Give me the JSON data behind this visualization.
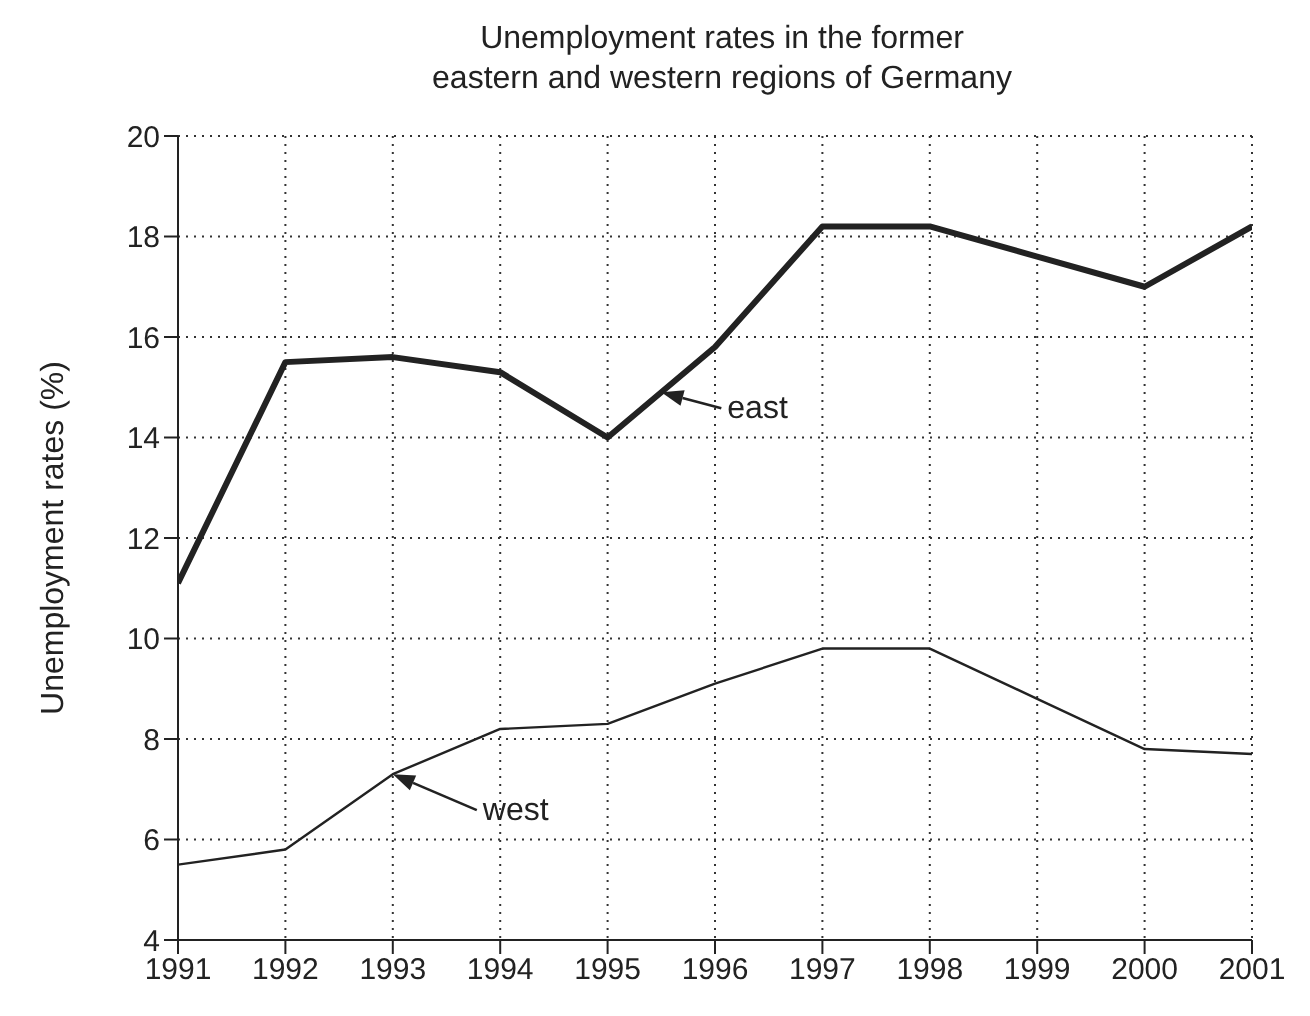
{
  "chart_data": {
    "type": "line",
    "title": "Unemployment rates in the former\neastern and western regions of Germany",
    "ylabel": "Unemployment rates (%)",
    "x": [
      1991,
      1992,
      1993,
      1994,
      1995,
      1996,
      1997,
      1998,
      1999,
      2000,
      2001
    ],
    "series": [
      {
        "name": "east",
        "color": "#222222",
        "values": [
          11.1,
          15.5,
          15.6,
          15.3,
          14.0,
          15.8,
          18.2,
          18.2,
          17.6,
          17.0,
          18.2
        ]
      },
      {
        "name": "west",
        "color": "#222222",
        "values": [
          5.5,
          5.8,
          7.3,
          8.2,
          8.3,
          9.1,
          9.8,
          9.8,
          8.8,
          7.8,
          7.7
        ]
      }
    ],
    "xlim": [
      1991,
      2001
    ],
    "xticks": [
      1991,
      1992,
      1993,
      1994,
      1995,
      1996,
      1997,
      1998,
      1999,
      2000,
      2001
    ],
    "ylim": [
      4,
      20
    ],
    "yticks": [
      4,
      6,
      8,
      10,
      12,
      14,
      16,
      18,
      20
    ],
    "grid": true,
    "legend": "center",
    "marker": "none",
    "line_style": "solid"
  }
}
